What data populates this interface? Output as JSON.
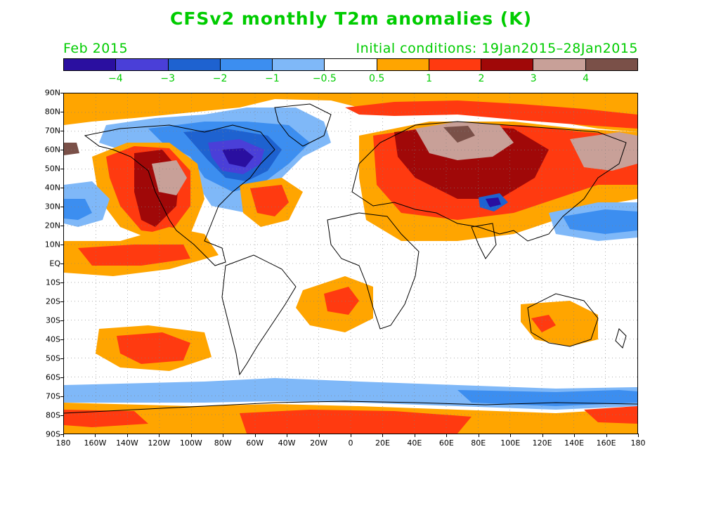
{
  "title": "CFSv2 monthly T2m anomalies (K)",
  "period": "Feb 2015",
  "initial_conditions": "Initial conditions: 19Jan2015–28Jan2015",
  "colorbar": {
    "colors": [
      "#2a0fa0",
      "#4a3fd8",
      "#1e62d0",
      "#3c8ef0",
      "#7fb8f8",
      "#ffffff",
      "#ffa500",
      "#ff3a10",
      "#a00808",
      "#c8a098",
      "#7a5048"
    ],
    "labels": [
      "−4",
      "−3",
      "−2",
      "−1",
      "−0.5",
      "0.5",
      "1",
      "2",
      "3",
      "4"
    ]
  },
  "axes": {
    "lat_labels": [
      "90N",
      "80N",
      "70N",
      "60N",
      "50N",
      "40N",
      "30N",
      "20N",
      "10N",
      "EQ",
      "10S",
      "20S",
      "30S",
      "40S",
      "50S",
      "60S",
      "70S",
      "80S",
      "90S"
    ],
    "lon_labels": [
      "180",
      "160W",
      "140W",
      "120W",
      "100W",
      "80W",
      "60W",
      "40W",
      "20W",
      "0",
      "20E",
      "40E",
      "60E",
      "80E",
      "100E",
      "120E",
      "140E",
      "160E",
      "180"
    ]
  },
  "map": {
    "projection": "cylindrical equidistant",
    "grid": "dotted",
    "variable": "2 m temperature anomaly",
    "unit": "K"
  }
}
